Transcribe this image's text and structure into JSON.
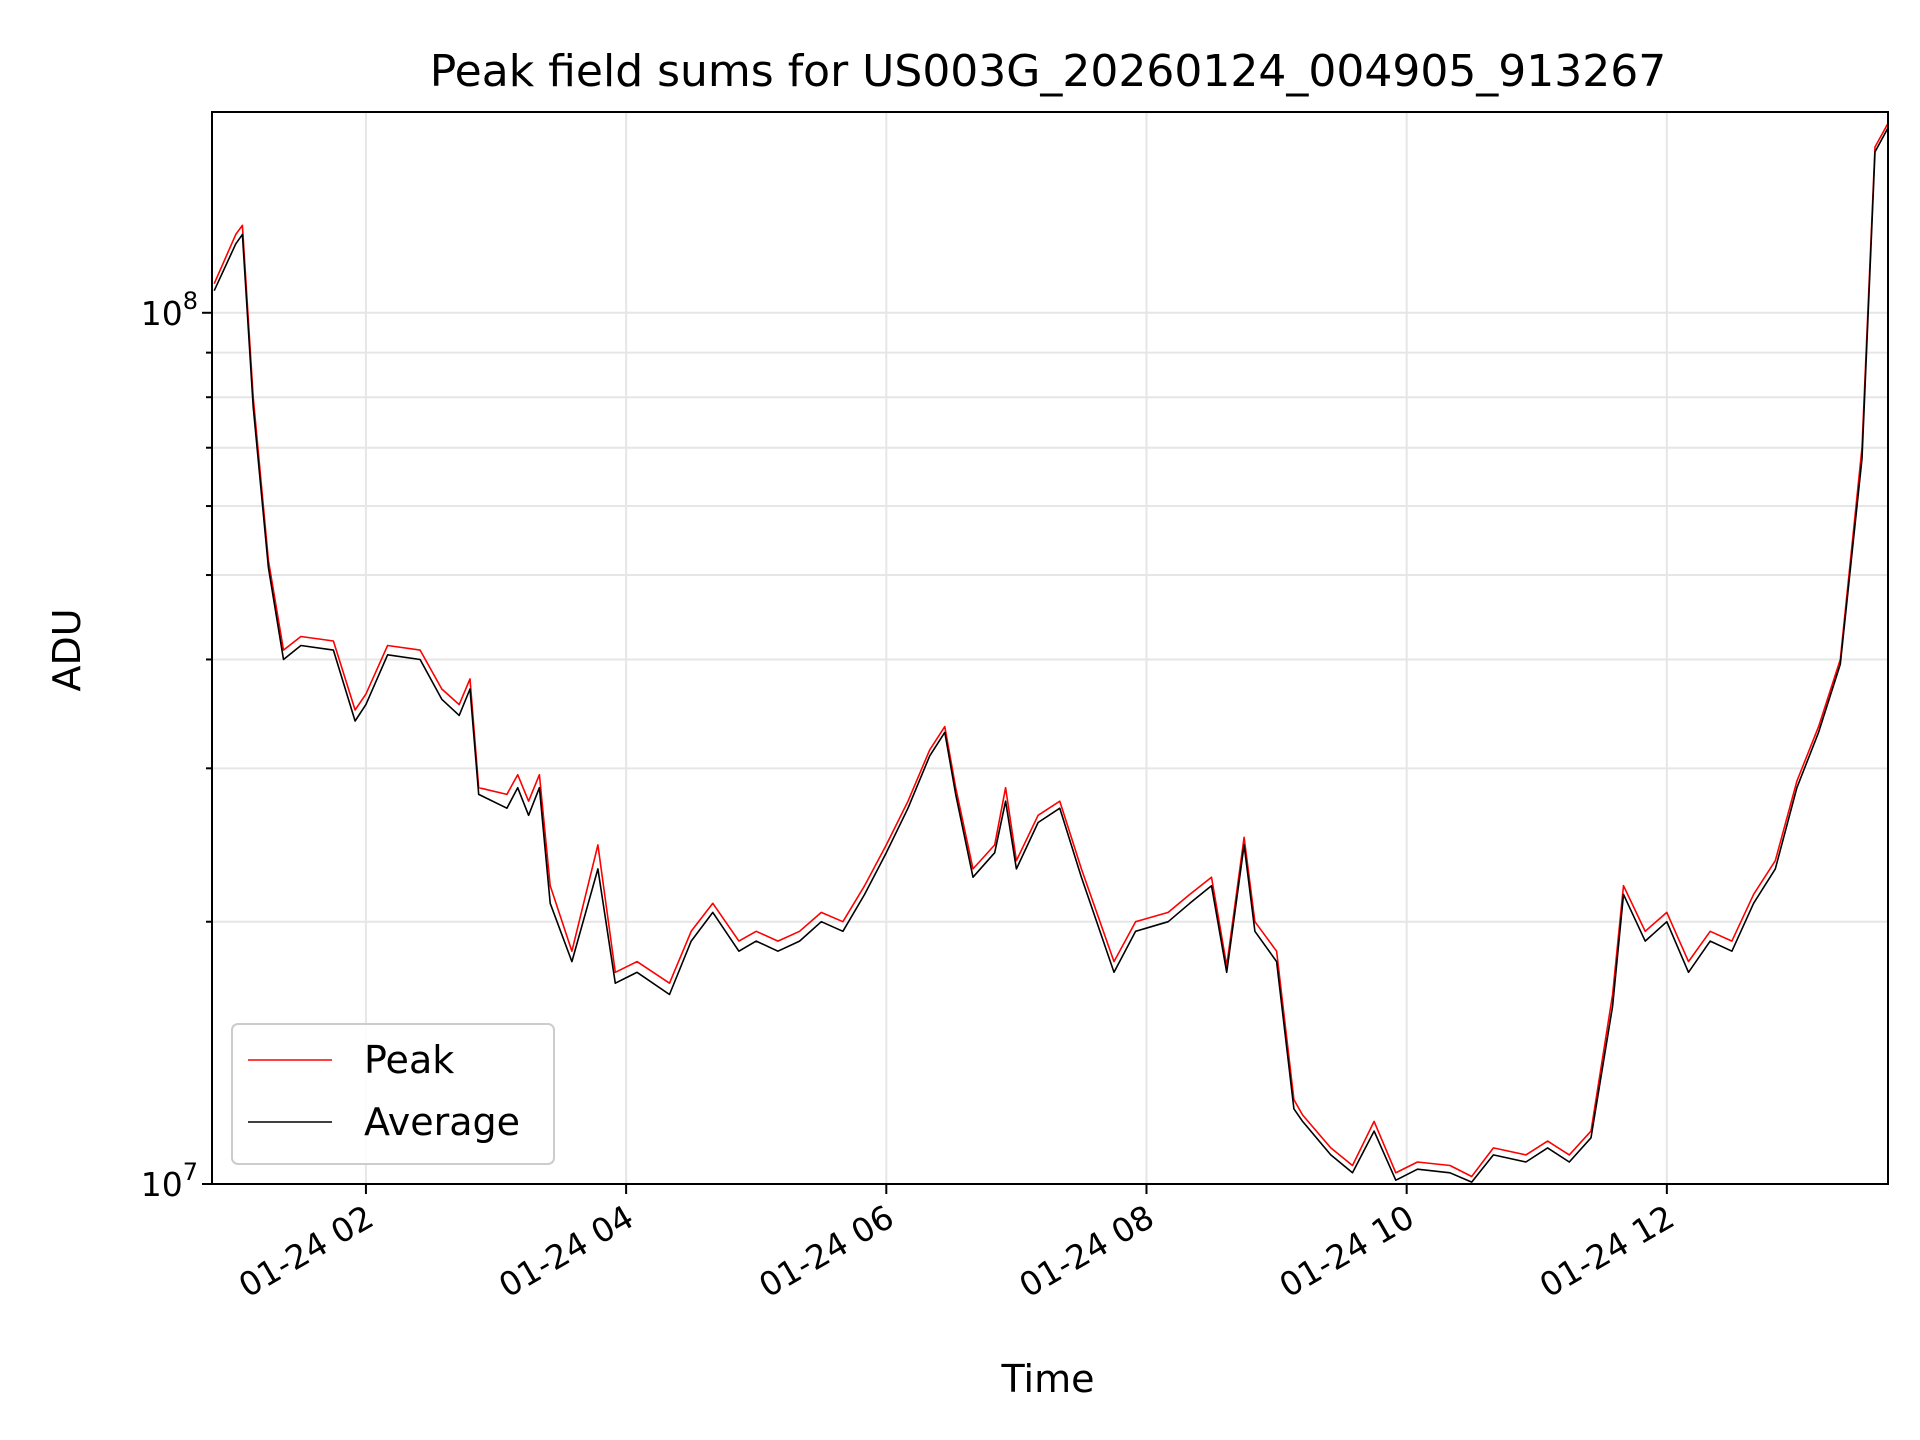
{
  "chart_data": {
    "type": "line",
    "title": "Peak field sums for US003G_20260124_004905_913267",
    "xlabel": "Time",
    "ylabel": "ADU",
    "yscale": "log",
    "ylim": [
      10000000,
      170000000
    ],
    "xlim": [
      "2026-01-24 00:49",
      "2026-01-24 13:42"
    ],
    "x_ticks": [
      "01-24 02",
      "01-24 04",
      "01-24 06",
      "01-24 08",
      "01-24 10",
      "01-24 12"
    ],
    "y_tick_labels": [
      "10^7",
      "10^8"
    ],
    "grid": true,
    "legend": {
      "placement": "lower-left",
      "entries": [
        "Peak",
        "Average"
      ]
    },
    "colors": {
      "Peak": "#ff0000",
      "Average": "#000000",
      "grid": "#e6e6e6"
    },
    "x": [
      "2026-01-24 00:50",
      "2026-01-24 01:00",
      "2026-01-24 01:03",
      "2026-01-24 01:08",
      "2026-01-24 01:15",
      "2026-01-24 01:22",
      "2026-01-24 01:30",
      "2026-01-24 01:45",
      "2026-01-24 01:55",
      "2026-01-24 02:00",
      "2026-01-24 02:10",
      "2026-01-24 02:25",
      "2026-01-24 02:35",
      "2026-01-24 02:43",
      "2026-01-24 02:48",
      "2026-01-24 02:52",
      "2026-01-24 03:05",
      "2026-01-24 03:10",
      "2026-01-24 03:15",
      "2026-01-24 03:20",
      "2026-01-24 03:25",
      "2026-01-24 03:35",
      "2026-01-24 03:47",
      "2026-01-24 03:55",
      "2026-01-24 04:05",
      "2026-01-24 04:20",
      "2026-01-24 04:30",
      "2026-01-24 04:40",
      "2026-01-24 04:52",
      "2026-01-24 05:00",
      "2026-01-24 05:10",
      "2026-01-24 05:20",
      "2026-01-24 05:30",
      "2026-01-24 05:40",
      "2026-01-24 05:50",
      "2026-01-24 06:00",
      "2026-01-24 06:10",
      "2026-01-24 06:20",
      "2026-01-24 06:27",
      "2026-01-24 06:32",
      "2026-01-24 06:40",
      "2026-01-24 06:50",
      "2026-01-24 06:55",
      "2026-01-24 07:00",
      "2026-01-24 07:10",
      "2026-01-24 07:20",
      "2026-01-24 07:30",
      "2026-01-24 07:45",
      "2026-01-24 07:55",
      "2026-01-24 08:10",
      "2026-01-24 08:20",
      "2026-01-24 08:30",
      "2026-01-24 08:37",
      "2026-01-24 08:45",
      "2026-01-24 08:50",
      "2026-01-24 09:00",
      "2026-01-24 09:08",
      "2026-01-24 09:12",
      "2026-01-24 09:25",
      "2026-01-24 09:35",
      "2026-01-24 09:45",
      "2026-01-24 09:55",
      "2026-01-24 10:05",
      "2026-01-24 10:20",
      "2026-01-24 10:30",
      "2026-01-24 10:40",
      "2026-01-24 10:55",
      "2026-01-24 11:05",
      "2026-01-24 11:15",
      "2026-01-24 11:25",
      "2026-01-24 11:35",
      "2026-01-24 11:40",
      "2026-01-24 11:50",
      "2026-01-24 12:00",
      "2026-01-24 12:10",
      "2026-01-24 12:20",
      "2026-01-24 12:30",
      "2026-01-24 12:40",
      "2026-01-24 12:50",
      "2026-01-24 13:00",
      "2026-01-24 13:10",
      "2026-01-24 13:20",
      "2026-01-24 13:30",
      "2026-01-24 13:36",
      "2026-01-24 13:42"
    ],
    "series": [
      {
        "name": "Peak",
        "values": [
          108000000,
          123000000,
          126000000,
          80000000,
          52000000,
          41000000,
          42500000,
          42000000,
          35000000,
          36500000,
          41500000,
          41000000,
          37000000,
          35500000,
          38000000,
          28500000,
          28000000,
          29500000,
          27500000,
          29500000,
          22000000,
          18500000,
          24500000,
          17500000,
          18000000,
          17000000,
          19500000,
          21000000,
          19000000,
          19500000,
          19000000,
          19500000,
          20500000,
          20000000,
          22000000,
          24500000,
          27500000,
          31500000,
          33500000,
          28500000,
          23000000,
          24500000,
          28500000,
          23500000,
          26500000,
          27500000,
          23000000,
          18000000,
          20000000,
          20500000,
          21500000,
          22500000,
          17800000,
          25000000,
          20000000,
          18500000,
          12500000,
          12000000,
          11000000,
          10500000,
          11800000,
          10300000,
          10600000,
          10500000,
          10200000,
          11000000,
          10800000,
          11200000,
          10800000,
          11500000,
          16500000,
          22000000,
          19500000,
          20500000,
          18000000,
          19500000,
          19000000,
          21500000,
          23500000,
          29000000,
          33500000,
          40000000,
          70000000,
          155000000,
          165000000
        ]
      },
      {
        "name": "Average",
        "values": [
          106000000,
          120000000,
          123000000,
          78000000,
          51000000,
          40000000,
          41500000,
          41000000,
          34000000,
          35500000,
          40500000,
          40000000,
          36000000,
          34500000,
          37000000,
          28000000,
          27000000,
          28500000,
          26500000,
          28500000,
          21000000,
          18000000,
          23000000,
          17000000,
          17500000,
          16500000,
          19000000,
          20500000,
          18500000,
          19000000,
          18500000,
          19000000,
          20000000,
          19500000,
          21500000,
          24000000,
          27000000,
          31000000,
          33000000,
          28000000,
          22500000,
          24000000,
          27500000,
          23000000,
          26000000,
          27000000,
          22500000,
          17500000,
          19500000,
          20000000,
          21000000,
          22000000,
          17500000,
          24500000,
          19500000,
          18000000,
          12200000,
          11800000,
          10800000,
          10300000,
          11500000,
          10100000,
          10400000,
          10300000,
          10050000,
          10800000,
          10600000,
          11000000,
          10600000,
          11300000,
          16000000,
          21500000,
          19000000,
          20000000,
          17500000,
          19000000,
          18500000,
          21000000,
          23000000,
          28500000,
          33000000,
          39500000,
          68000000,
          153000000,
          163000000
        ]
      }
    ]
  }
}
